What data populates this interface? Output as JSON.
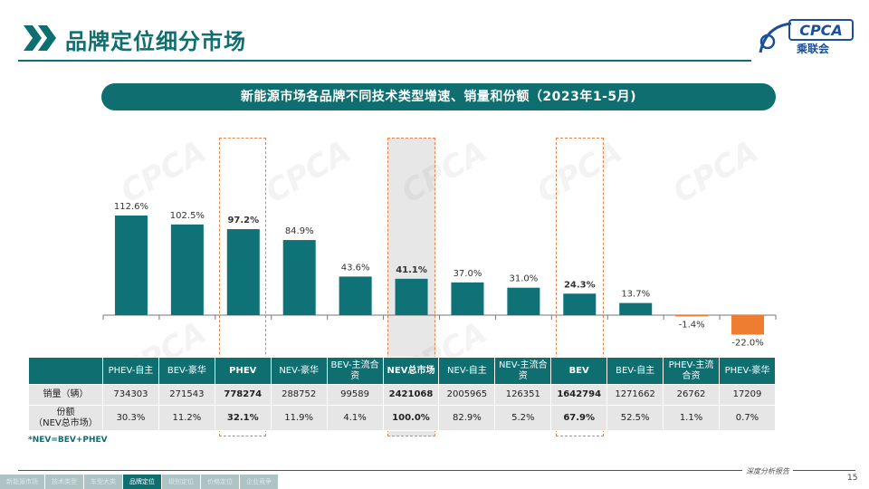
{
  "page_title": "品牌定位细分市场",
  "logo": {
    "main": "CPCA",
    "sub": "乘联会"
  },
  "chart_title": "新能源市场各品牌不同技术类型增速、销量和份额（2023年1-5月)",
  "chart_data": {
    "type": "bar",
    "title": "新能源市场各品牌不同技术类型增速、销量和份额（2023年1-5月)",
    "categories": [
      "PHEV-自主",
      "BEV-豪华",
      "PHEV",
      "NEV-豪华",
      "BEV-主流合资",
      "NEV总市场",
      "NEV-自主",
      "NEV-主流合资",
      "BEV",
      "BEV-自主",
      "PHEV-主流合资",
      "PHEV-豪华"
    ],
    "series": [
      {
        "values": [
          112.6,
          102.5,
          97.2,
          84.9,
          43.6,
          41.1,
          37.0,
          31.0,
          24.3,
          13.7,
          -1.4,
          -22.0
        ]
      }
    ],
    "value_labels": [
      "112.6%",
      "102.5%",
      "97.2%",
      "84.9%",
      "43.6%",
      "41.1%",
      "37.0%",
      "31.0%",
      "24.3%",
      "13.7%",
      "-1.4%",
      "-22.0%"
    ],
    "highlighted_categories": [
      "PHEV",
      "NEV总市场",
      "BEV"
    ],
    "colors": {
      "positive": "#0f7276",
      "negative": "#ee7d31",
      "highlight_box": "#e8834a"
    },
    "ylim": [
      -30,
      125
    ],
    "grid": false
  },
  "table": {
    "columns": [
      "",
      "PHEV-自主",
      "BEV-豪华",
      "PHEV",
      "NEV-豪华",
      "BEV-主流合资",
      "NEV总市场",
      "NEV-自主",
      "NEV-主流合资",
      "BEV",
      "BEV-自主",
      "PHEV-主流合资",
      "PHEV-豪华"
    ],
    "rows": [
      {
        "label": "销量（辆）",
        "values": [
          "734303",
          "271543",
          "778274",
          "288752",
          "99589",
          "2421068",
          "2005965",
          "126351",
          "1642794",
          "1271662",
          "26762",
          "17209"
        ]
      },
      {
        "label": "份额\n（NEV总市场）",
        "values": [
          "30.3%",
          "11.2%",
          "32.1%",
          "11.9%",
          "4.1%",
          "100.0%",
          "82.9%",
          "5.2%",
          "67.9%",
          "52.5%",
          "1.1%",
          "0.7%"
        ]
      }
    ]
  },
  "footnote": "*NEV=BEV+PHEV",
  "tagline": "深度分析报告",
  "page_number": "15",
  "nav_tabs": [
    {
      "label": "新能源市场",
      "active": false
    },
    {
      "label": "技术类型",
      "active": false
    },
    {
      "label": "车型大类",
      "active": false
    },
    {
      "label": "品牌定位",
      "active": true
    },
    {
      "label": "级别定位",
      "active": false
    },
    {
      "label": "价格定位",
      "active": false
    },
    {
      "label": "企业竞争",
      "active": false
    }
  ],
  "watermark": "CPCA"
}
